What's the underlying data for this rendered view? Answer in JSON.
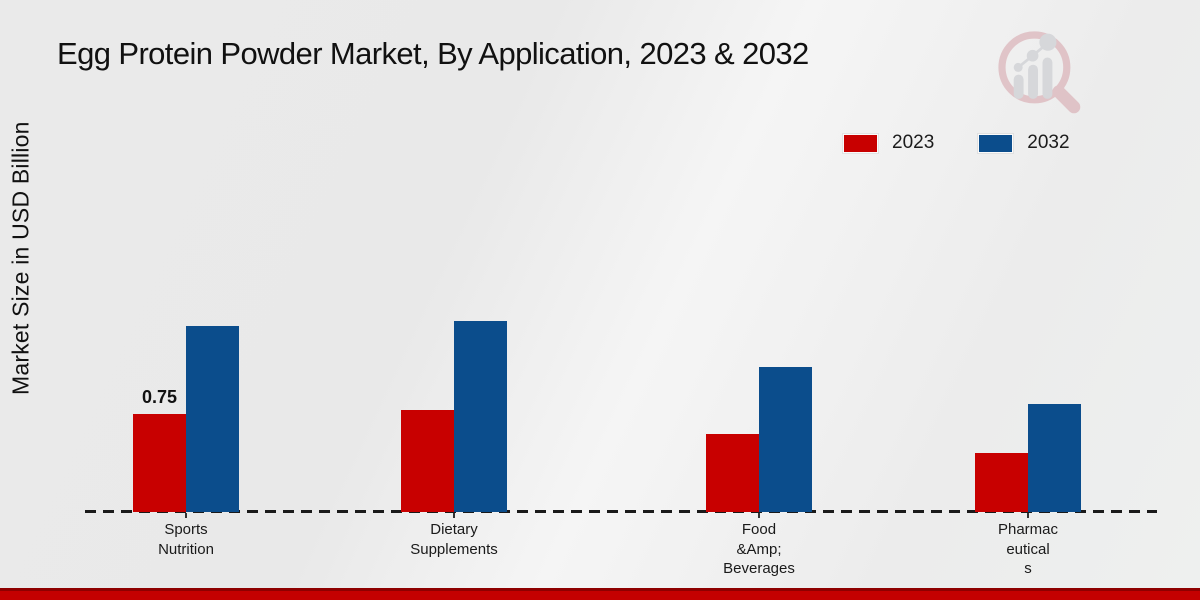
{
  "title": "Egg Protein Powder Market, By Application, 2023 & 2032",
  "y_axis_label": "Market Size in USD Billion",
  "legend": [
    {
      "label": "2023",
      "color": "#c80000"
    },
    {
      "label": "2032",
      "color": "#0b4d8c"
    }
  ],
  "footer": {
    "bar_color": "#c40000",
    "accent_color": "#8e0000"
  },
  "logo": {
    "name": "magnifier-bar-chart-logo"
  },
  "chart_data": {
    "type": "bar",
    "title": "Egg Protein Powder Market, By Application, 2023 & 2032",
    "xlabel": "",
    "ylabel": "Market Size in USD Billion",
    "categories": [
      "Sports Nutrition",
      "Dietary Supplements",
      "Food &Amp; Beverages",
      "Pharmaceuticals"
    ],
    "category_label_lines": [
      [
        "Sports",
        "Nutrition"
      ],
      [
        "Dietary",
        "Supplements"
      ],
      [
        "Food",
        "&Amp;",
        "Beverages"
      ],
      [
        "Pharmac",
        "eutical",
        "s"
      ]
    ],
    "series": [
      {
        "name": "2023",
        "color": "#c80000",
        "values": [
          0.75,
          0.78,
          0.6,
          0.45
        ]
      },
      {
        "name": "2032",
        "color": "#0b4d8c",
        "values": [
          1.42,
          1.46,
          1.11,
          0.83
        ]
      }
    ],
    "annotations": [
      {
        "category_index": 0,
        "series_index": 0,
        "text": "0.75"
      }
    ],
    "ylim": [
      0,
      1.6
    ],
    "grid": false,
    "legend_position": "top-right",
    "baseline_style": "dashed"
  }
}
